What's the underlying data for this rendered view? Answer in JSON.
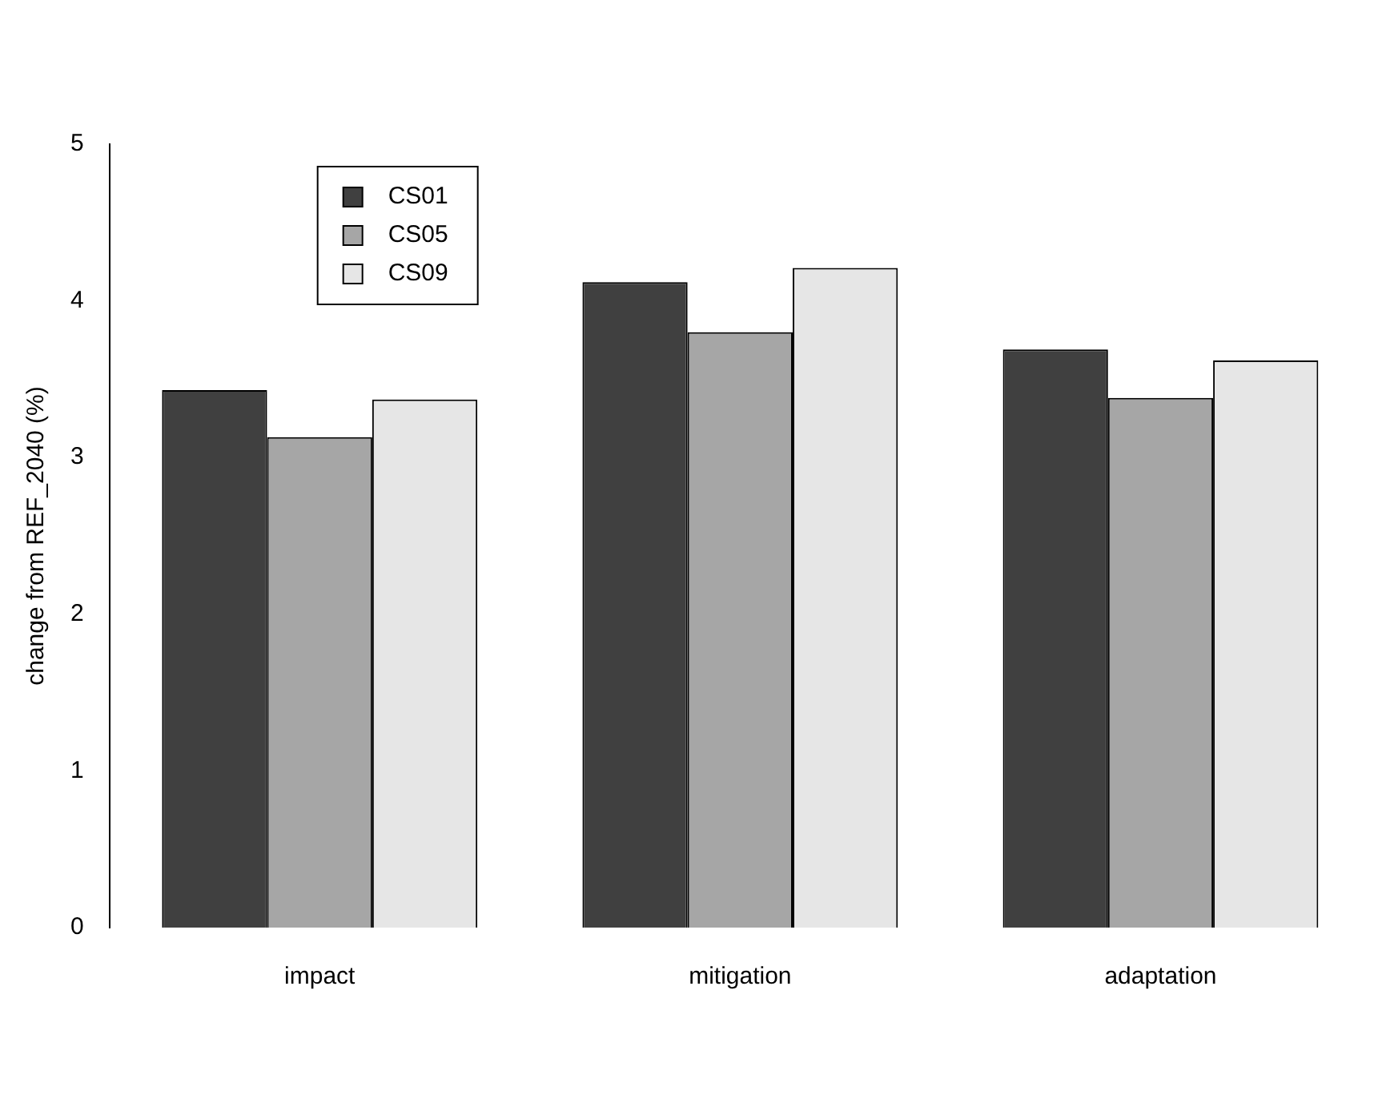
{
  "chart_data": {
    "type": "bar",
    "ylabel": "change from REF_2040 (%)",
    "categories": [
      "impact",
      "mitigation",
      "adaptation"
    ],
    "series": [
      {
        "name": "CS01",
        "color": "#404040",
        "values": [
          3.43,
          4.12,
          3.69
        ]
      },
      {
        "name": "CS05",
        "color": "#a6a6a6",
        "values": [
          3.13,
          3.8,
          3.38
        ]
      },
      {
        "name": "CS09",
        "color": "#e6e6e6",
        "values": [
          3.37,
          4.21,
          3.62
        ]
      }
    ],
    "ylim": [
      0,
      5
    ],
    "yticks": [
      0,
      1,
      2,
      3,
      4,
      5
    ],
    "grid": false,
    "legend": "top left"
  }
}
